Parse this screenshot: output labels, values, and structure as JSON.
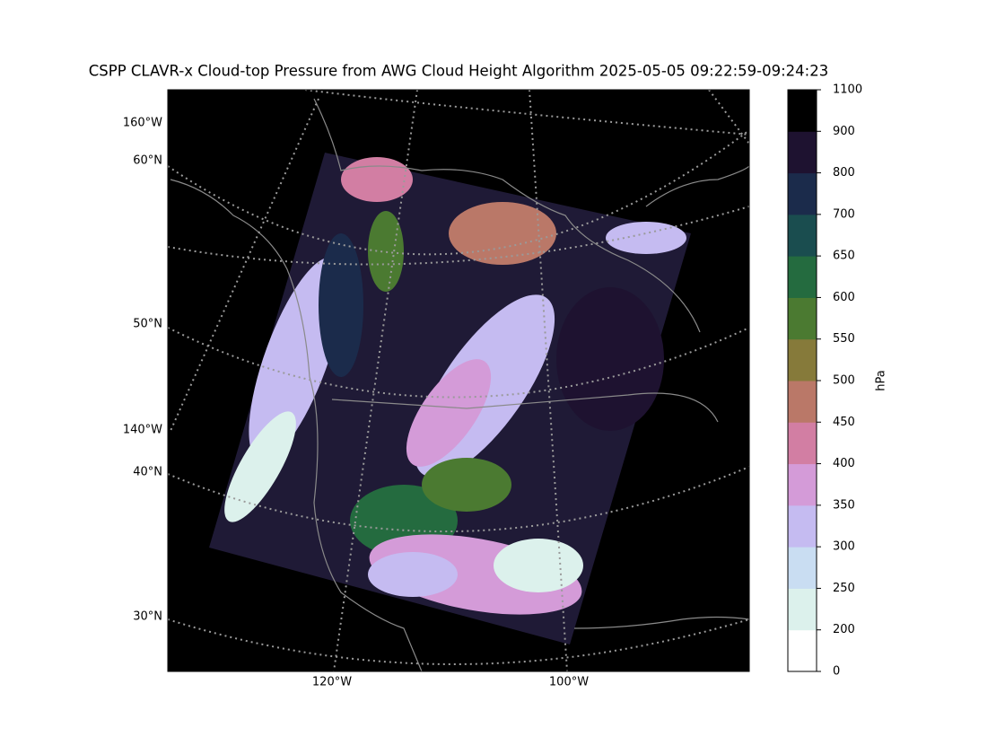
{
  "title": "CSPP CLAVR-x Cloud-top Pressure from AWG Cloud Height Algorithm 2025-05-05 09:22:59-09:24:23",
  "graticule_labels": [
    "160°W",
    "60°N",
    "50°N",
    "140°W",
    "40°N",
    "30°N",
    "120°W",
    "100°W"
  ],
  "colorbar": {
    "label": "hPa",
    "bounds": [
      0,
      200,
      250,
      300,
      350,
      400,
      450,
      500,
      550,
      600,
      650,
      700,
      800,
      900,
      1100
    ],
    "colors": [
      "#ffffff",
      "#dcf1ec",
      "#c9ddf2",
      "#c5bbf1",
      "#d49bd8",
      "#d27ea3",
      "#ba7868",
      "#867a3a",
      "#4b7a31",
      "#246b3f",
      "#1a4d4f",
      "#1b2b4b",
      "#1e1230",
      "#000000"
    ]
  }
}
